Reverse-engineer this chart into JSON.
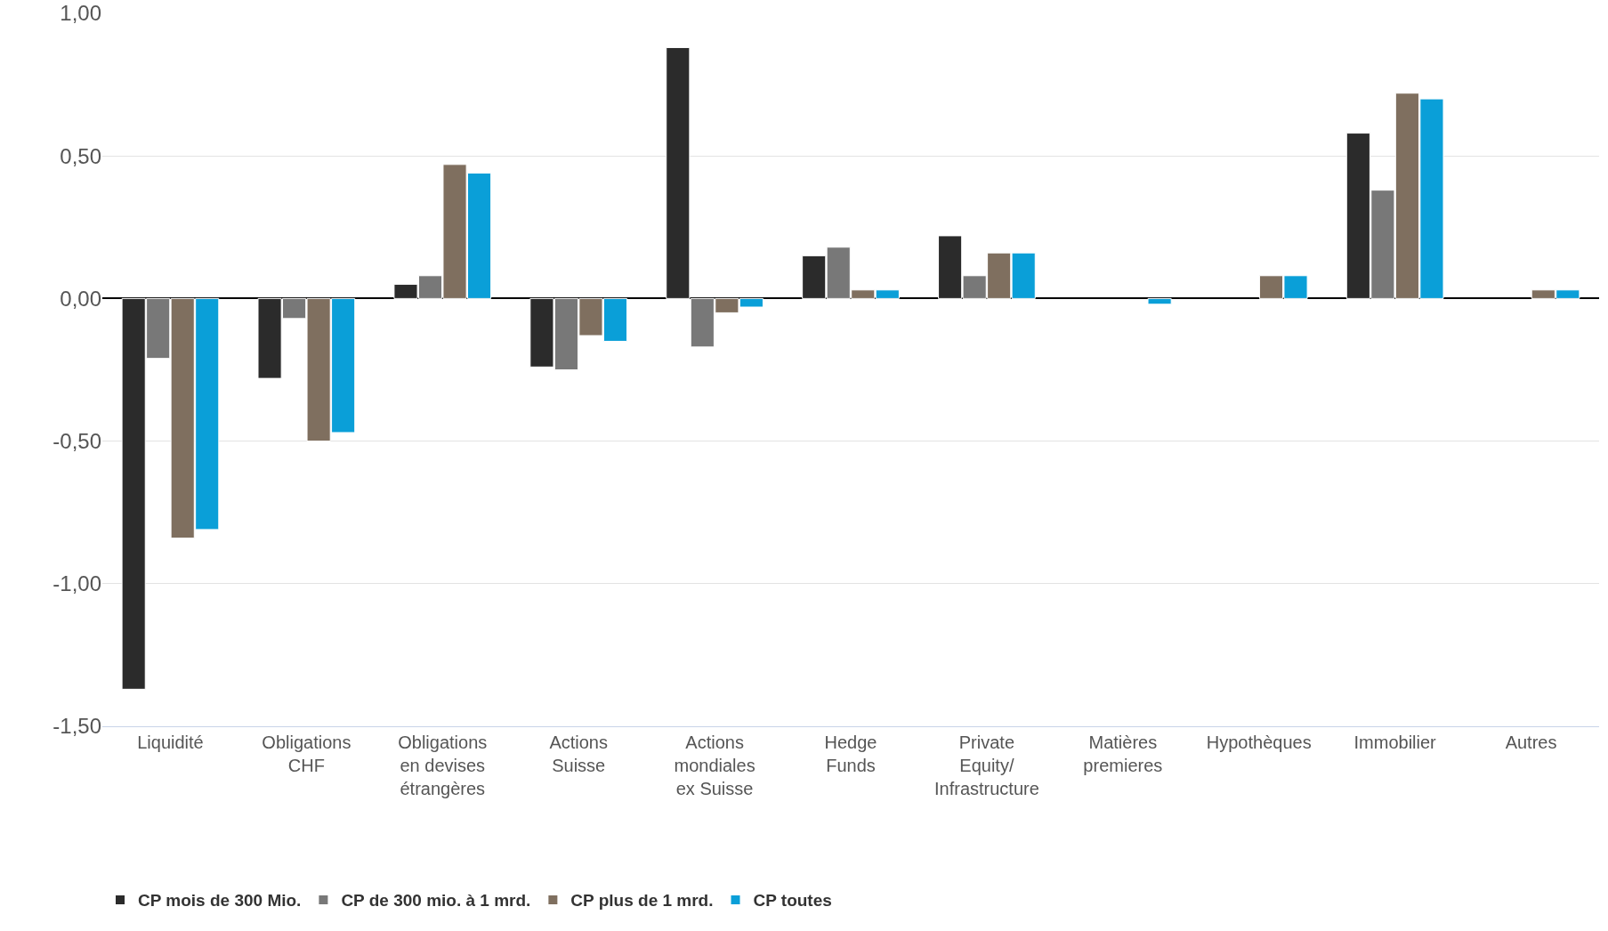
{
  "chart_data": {
    "type": "bar",
    "categories": [
      "Liquidité",
      "Obligations\nCHF",
      "Obligations\nen devises\nétrangères",
      "Actions\nSuisse",
      "Actions\nmondiales\nex Suisse",
      "Hedge\nFunds",
      "Private\nEquity/\nInfrastructure",
      "Matières\npremieres",
      "Hypothèques",
      "Immobilier",
      "Autres"
    ],
    "series": [
      {
        "name": "CP mois de 300 Mio.",
        "color": "#2b2b2b",
        "values": [
          -1.37,
          -0.28,
          0.05,
          -0.24,
          0.88,
          0.15,
          0.22,
          null,
          null,
          0.58,
          null
        ]
      },
      {
        "name": "CP de 300 mio. à 1 mrd.",
        "color": "#787878",
        "values": [
          -0.21,
          -0.07,
          0.08,
          -0.25,
          -0.17,
          0.18,
          0.08,
          null,
          null,
          0.38,
          null
        ]
      },
      {
        "name": "CP plus de 1 mrd.",
        "color": "#7f6f5f",
        "values": [
          -0.84,
          -0.5,
          0.47,
          -0.13,
          -0.05,
          0.03,
          0.16,
          null,
          0.08,
          0.72,
          0.03
        ]
      },
      {
        "name": "CP toutes",
        "color": "#0a9fd8",
        "values": [
          -0.81,
          -0.47,
          0.44,
          -0.15,
          -0.03,
          0.03,
          0.16,
          -0.02,
          0.08,
          0.7,
          0.03
        ]
      }
    ],
    "ylim": [
      -1.5,
      1.0
    ],
    "yticks": [
      {
        "value": -1.5,
        "label": "-1,50"
      },
      {
        "value": -1.0,
        "label": "-1,00"
      },
      {
        "value": -0.5,
        "label": "-0,50"
      },
      {
        "value": 0,
        "label": "0,00"
      },
      {
        "value": 0.5,
        "label": "0,50"
      },
      {
        "value": 1.0,
        "label": "1,00"
      }
    ],
    "grid": "y",
    "legend": "bottom left"
  }
}
